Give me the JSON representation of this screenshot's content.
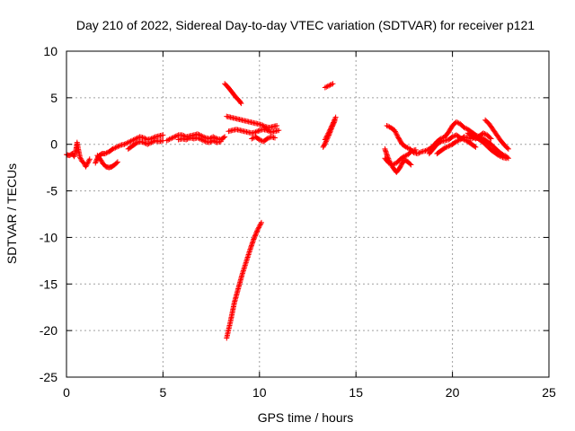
{
  "chart_data": {
    "type": "scatter",
    "title": "Day 210 of 2022, Sidereal Day-to-day VTEC variation (SDTVAR) for receiver p121",
    "xlabel": "GPS time / hours",
    "ylabel": "SDTVAR / TECUs",
    "xlim": [
      0,
      25
    ],
    "ylim": [
      -25,
      10
    ],
    "xticks": [
      0,
      5,
      10,
      15,
      20,
      25
    ],
    "yticks": [
      -25,
      -20,
      -15,
      -10,
      -5,
      0,
      5,
      10
    ],
    "grid": true,
    "marker": "plus",
    "color": "#ff0000",
    "segments": [
      [
        [
          0.0,
          -1.1
        ],
        [
          0.15,
          -1.2
        ],
        [
          0.3,
          -1.0
        ],
        [
          0.4,
          -1.3
        ],
        [
          0.5,
          -0.5
        ],
        [
          0.55,
          0.2
        ],
        [
          0.6,
          -0.4
        ],
        [
          0.7,
          -1.4
        ],
        [
          0.8,
          -1.8
        ],
        [
          0.9,
          -2.0
        ],
        [
          1.0,
          -2.4
        ],
        [
          1.1,
          -2.0
        ],
        [
          1.2,
          -1.6
        ]
      ],
      [
        [
          1.6,
          -1.2
        ],
        [
          1.75,
          -1.6
        ],
        [
          1.9,
          -2.1
        ],
        [
          2.05,
          -2.4
        ],
        [
          2.2,
          -2.5
        ],
        [
          2.35,
          -2.4
        ],
        [
          2.5,
          -2.2
        ],
        [
          2.65,
          -1.9
        ]
      ],
      [
        [
          1.5,
          -2.0
        ],
        [
          1.6,
          -1.5
        ],
        [
          1.7,
          -1.2
        ],
        [
          1.85,
          -1.0
        ],
        [
          2.0,
          -1.0
        ],
        [
          2.2,
          -0.8
        ],
        [
          2.4,
          -0.5
        ],
        [
          2.6,
          -0.3
        ],
        [
          2.8,
          -0.1
        ],
        [
          3.0,
          0.0
        ],
        [
          3.2,
          0.2
        ],
        [
          3.4,
          0.4
        ],
        [
          3.6,
          0.6
        ],
        [
          3.8,
          0.8
        ],
        [
          4.0,
          0.7
        ],
        [
          4.2,
          0.5
        ],
        [
          4.4,
          0.6
        ],
        [
          4.6,
          0.8
        ],
        [
          4.8,
          0.9
        ],
        [
          5.0,
          1.0
        ]
      ],
      [
        [
          3.2,
          -0.5
        ],
        [
          3.4,
          -0.2
        ],
        [
          3.6,
          0.1
        ],
        [
          3.8,
          0.3
        ],
        [
          4.0,
          0.2
        ],
        [
          4.2,
          0.0
        ],
        [
          4.4,
          0.2
        ],
        [
          4.6,
          0.4
        ],
        [
          4.8,
          0.3
        ],
        [
          5.0,
          0.4
        ]
      ],
      [
        [
          5.2,
          0.4
        ],
        [
          5.4,
          0.6
        ],
        [
          5.6,
          0.8
        ],
        [
          5.8,
          1.0
        ],
        [
          6.0,
          1.0
        ],
        [
          6.2,
          0.8
        ],
        [
          6.4,
          0.9
        ],
        [
          6.6,
          1.0
        ],
        [
          6.8,
          1.1
        ],
        [
          7.0,
          0.9
        ],
        [
          7.2,
          0.7
        ],
        [
          7.4,
          0.6
        ],
        [
          7.6,
          0.8
        ],
        [
          7.8,
          0.6
        ],
        [
          8.0,
          0.5
        ],
        [
          8.2,
          0.8
        ]
      ],
      [
        [
          5.8,
          0.5
        ],
        [
          6.0,
          0.6
        ],
        [
          6.2,
          0.5
        ],
        [
          6.4,
          0.7
        ],
        [
          6.6,
          0.6
        ],
        [
          6.8,
          0.7
        ],
        [
          7.0,
          0.5
        ],
        [
          7.2,
          0.3
        ],
        [
          7.4,
          0.2
        ],
        [
          7.6,
          0.4
        ],
        [
          7.8,
          0.2
        ],
        [
          8.0,
          0.3
        ]
      ],
      [
        [
          8.2,
          6.5
        ],
        [
          8.35,
          6.2
        ],
        [
          8.5,
          5.8
        ],
        [
          8.65,
          5.4
        ],
        [
          8.8,
          5.0
        ],
        [
          8.95,
          4.7
        ],
        [
          9.05,
          4.4
        ]
      ],
      [
        [
          8.3,
          3.0
        ],
        [
          8.5,
          2.9
        ],
        [
          8.7,
          2.8
        ],
        [
          8.9,
          2.7
        ],
        [
          9.1,
          2.6
        ],
        [
          9.3,
          2.5
        ],
        [
          9.5,
          2.4
        ],
        [
          9.7,
          2.3
        ],
        [
          9.9,
          2.2
        ],
        [
          10.1,
          2.1
        ],
        [
          10.3,
          1.9
        ],
        [
          10.5,
          1.8
        ],
        [
          10.7,
          1.9
        ],
        [
          10.9,
          2.0
        ]
      ],
      [
        [
          8.4,
          1.4
        ],
        [
          8.6,
          1.5
        ],
        [
          8.8,
          1.6
        ],
        [
          9.0,
          1.5
        ],
        [
          9.2,
          1.4
        ],
        [
          9.4,
          1.3
        ],
        [
          9.6,
          1.2
        ],
        [
          9.8,
          1.3
        ],
        [
          10.0,
          1.5
        ],
        [
          10.2,
          1.6
        ],
        [
          10.4,
          1.5
        ],
        [
          10.6,
          1.3
        ],
        [
          10.8,
          1.4
        ],
        [
          11.0,
          1.5
        ]
      ],
      [
        [
          9.6,
          0.6
        ],
        [
          9.8,
          0.8
        ],
        [
          10.0,
          0.5
        ],
        [
          10.2,
          0.3
        ],
        [
          10.4,
          0.6
        ],
        [
          10.6,
          0.8
        ],
        [
          10.8,
          0.7
        ]
      ],
      [
        [
          8.3,
          -20.8
        ],
        [
          8.5,
          -19.0
        ],
        [
          8.7,
          -17.0
        ],
        [
          8.9,
          -15.5
        ],
        [
          9.1,
          -14.0
        ],
        [
          9.3,
          -12.7
        ],
        [
          9.5,
          -11.4
        ],
        [
          9.7,
          -10.2
        ],
        [
          9.9,
          -9.2
        ],
        [
          10.1,
          -8.4
        ]
      ],
      [
        [
          13.4,
          6.1
        ],
        [
          13.6,
          6.3
        ],
        [
          13.8,
          6.5
        ]
      ],
      [
        [
          13.3,
          -0.3
        ],
        [
          13.45,
          0.3
        ],
        [
          13.6,
          1.0
        ],
        [
          13.75,
          1.8
        ],
        [
          13.9,
          2.5
        ]
      ],
      [
        [
          13.4,
          0.5
        ],
        [
          13.6,
          1.3
        ],
        [
          13.8,
          2.2
        ],
        [
          13.95,
          2.9
        ]
      ],
      [
        [
          16.5,
          -0.5
        ],
        [
          16.65,
          -1.4
        ],
        [
          16.8,
          -2.1
        ],
        [
          16.95,
          -2.6
        ],
        [
          17.1,
          -3.0
        ],
        [
          17.25,
          -2.6
        ],
        [
          17.4,
          -2.0
        ],
        [
          17.55,
          -1.7
        ],
        [
          17.7,
          -1.9
        ],
        [
          17.85,
          -2.2
        ]
      ],
      [
        [
          16.5,
          -1.5
        ],
        [
          16.7,
          -2.0
        ],
        [
          16.9,
          -2.2
        ],
        [
          17.1,
          -2.0
        ],
        [
          17.3,
          -1.6
        ],
        [
          17.5,
          -1.3
        ],
        [
          17.7,
          -1.1
        ],
        [
          17.9,
          -0.7
        ],
        [
          18.1,
          -0.6
        ]
      ],
      [
        [
          16.6,
          2.0
        ],
        [
          16.8,
          1.8
        ],
        [
          17.0,
          1.5
        ],
        [
          17.2,
          0.7
        ],
        [
          17.4,
          0.0
        ],
        [
          17.6,
          -0.3
        ],
        [
          17.8,
          -0.5
        ],
        [
          18.0,
          -0.9
        ],
        [
          18.2,
          -1.0
        ],
        [
          18.4,
          -0.8
        ],
        [
          18.6,
          -0.7
        ],
        [
          18.8,
          -0.5
        ],
        [
          19.0,
          -0.2
        ],
        [
          19.2,
          0.3
        ],
        [
          19.4,
          0.6
        ],
        [
          19.6,
          0.8
        ],
        [
          19.8,
          1.3
        ],
        [
          20.0,
          2.0
        ],
        [
          20.2,
          2.4
        ],
        [
          20.4,
          2.2
        ],
        [
          20.6,
          1.8
        ],
        [
          20.8,
          1.6
        ],
        [
          21.0,
          1.3
        ],
        [
          21.2,
          1.0
        ],
        [
          21.4,
          0.8
        ],
        [
          21.6,
          0.6
        ],
        [
          21.8,
          0.3
        ],
        [
          22.0,
          0.0
        ],
        [
          22.2,
          -0.4
        ],
        [
          22.4,
          -0.8
        ],
        [
          22.6,
          -1.1
        ],
        [
          22.8,
          -1.3
        ],
        [
          22.9,
          -1.5
        ]
      ],
      [
        [
          18.8,
          -1.0
        ],
        [
          19.0,
          -0.5
        ],
        [
          19.2,
          0.0
        ],
        [
          19.4,
          0.3
        ],
        [
          19.6,
          0.4
        ],
        [
          19.8,
          0.5
        ],
        [
          20.0,
          0.8
        ],
        [
          20.2,
          1.0
        ],
        [
          20.4,
          0.7
        ],
        [
          20.6,
          0.5
        ],
        [
          20.8,
          0.3
        ],
        [
          21.0,
          0.0
        ],
        [
          21.2,
          -0.3
        ]
      ],
      [
        [
          19.2,
          -1.0
        ],
        [
          19.4,
          -0.7
        ],
        [
          19.6,
          -0.4
        ],
        [
          19.8,
          -0.2
        ],
        [
          20.0,
          0.0
        ],
        [
          20.2,
          0.3
        ],
        [
          20.4,
          0.5
        ],
        [
          20.6,
          0.8
        ],
        [
          20.8,
          0.7
        ],
        [
          21.0,
          0.6
        ],
        [
          21.2,
          0.8
        ],
        [
          21.4,
          0.5
        ],
        [
          21.6,
          0.2
        ],
        [
          21.8,
          -0.2
        ],
        [
          22.0,
          -0.6
        ],
        [
          22.2,
          -0.9
        ],
        [
          22.4,
          -1.2
        ],
        [
          22.6,
          -1.4
        ],
        [
          22.8,
          -1.5
        ]
      ],
      [
        [
          21.7,
          2.6
        ],
        [
          21.9,
          2.2
        ],
        [
          22.1,
          1.6
        ],
        [
          22.3,
          1.0
        ],
        [
          22.5,
          0.4
        ],
        [
          22.7,
          -0.1
        ],
        [
          22.9,
          -0.5
        ]
      ],
      [
        [
          20.8,
          1.2
        ],
        [
          21.0,
          0.9
        ],
        [
          21.2,
          0.6
        ],
        [
          21.4,
          0.9
        ],
        [
          21.6,
          1.2
        ],
        [
          21.8,
          1.0
        ],
        [
          22.0,
          0.6
        ]
      ]
    ]
  }
}
